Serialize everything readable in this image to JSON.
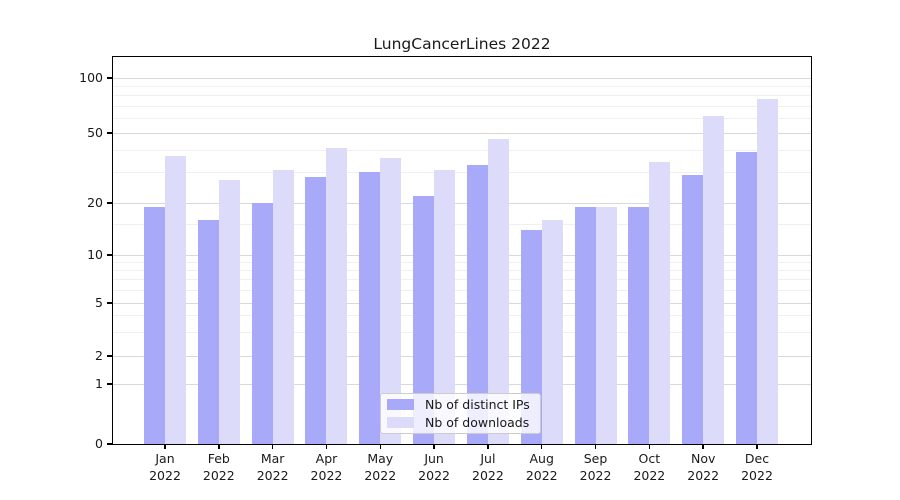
{
  "chart_data": {
    "type": "bar",
    "title": "LungCancerLines 2022",
    "xlabel": "",
    "ylabel": "",
    "categories": [
      "Jan 2022",
      "Feb 2022",
      "Mar 2022",
      "Apr 2022",
      "May 2022",
      "Jun 2022",
      "Jul 2022",
      "Aug 2022",
      "Sep 2022",
      "Oct 2022",
      "Nov 2022",
      "Dec 2022"
    ],
    "series": [
      {
        "name": "Nb of distinct IPs",
        "color": "#a9a9fa",
        "values": [
          19,
          16,
          20,
          28,
          30,
          22,
          33,
          14,
          19,
          19,
          29,
          39
        ]
      },
      {
        "name": "Nb of downloads",
        "color": "#dcdcfa",
        "values": [
          37,
          27,
          31,
          41,
          36,
          31,
          46,
          16,
          19,
          34,
          62,
          77
        ]
      }
    ],
    "yscale": "log-like (non-linear, ticks 0/1/2/5/10/20/50/100)",
    "yticks": [
      0,
      1,
      2,
      5,
      10,
      20,
      50,
      100
    ],
    "ylim": [
      0,
      130
    ],
    "grid": true,
    "legend_position": "lower center"
  }
}
